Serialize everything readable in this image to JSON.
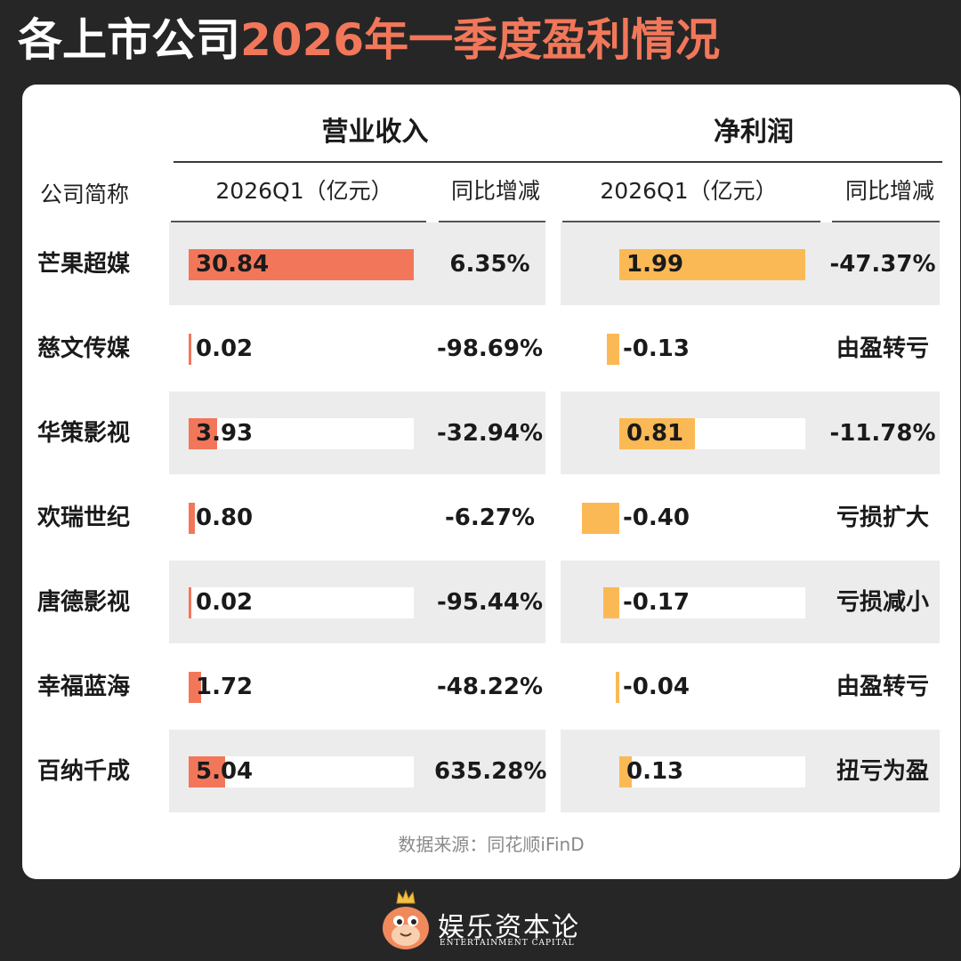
{
  "title": {
    "part1": "各上市公司",
    "part2": "2026年一季度盈利情况"
  },
  "chart_data": {
    "type": "table",
    "group_headers": {
      "revenue": "营业收入",
      "profit": "净利润"
    },
    "column_headers": {
      "company": "公司简称",
      "revenue_value": "2026Q1（亿元）",
      "revenue_change": "同比增减",
      "profit_value": "2026Q1（亿元）",
      "profit_change": "同比增减"
    },
    "rows": [
      {
        "company": "芒果超媒",
        "revenue": 30.84,
        "revenue_label": "30.84",
        "revenue_change": "6.35%",
        "profit": 1.99,
        "profit_label": "1.99",
        "profit_change": "-47.37%"
      },
      {
        "company": "慈文传媒",
        "revenue": 0.02,
        "revenue_label": "0.02",
        "revenue_change": "-98.69%",
        "profit": -0.13,
        "profit_label": "-0.13",
        "profit_change": "由盈转亏"
      },
      {
        "company": "华策影视",
        "revenue": 3.93,
        "revenue_label": "3.93",
        "revenue_change": "-32.94%",
        "profit": 0.81,
        "profit_label": "0.81",
        "profit_change": "-11.78%"
      },
      {
        "company": "欢瑞世纪",
        "revenue": 0.8,
        "revenue_label": "0.80",
        "revenue_change": "-6.27%",
        "profit": -0.4,
        "profit_label": "-0.40",
        "profit_change": "亏损扩大"
      },
      {
        "company": "唐德影视",
        "revenue": 0.02,
        "revenue_label": "0.02",
        "revenue_change": "-95.44%",
        "profit": -0.17,
        "profit_label": "-0.17",
        "profit_change": "亏损减小"
      },
      {
        "company": "幸福蓝海",
        "revenue": 1.72,
        "revenue_label": "1.72",
        "revenue_change": "-48.22%",
        "profit": -0.04,
        "profit_label": "-0.04",
        "profit_change": "由盈转亏"
      },
      {
        "company": "百纳千成",
        "revenue": 5.04,
        "revenue_label": "5.04",
        "revenue_change": "635.28%",
        "profit": 0.13,
        "profit_label": "0.13",
        "profit_change": "扭亏为盈"
      }
    ],
    "revenue_max": 30.84,
    "profit_max": 1.99
  },
  "colors": {
    "revenue_bar": "#f2775a",
    "profit_bar": "#fbb955",
    "row_bg": "#ececec",
    "title_accent": "#f2775a"
  },
  "source": "数据来源：同花顺iFinD",
  "brand": {
    "name": "娱乐资本论",
    "sub": "ENTERTAINMENT CAPITAL"
  }
}
